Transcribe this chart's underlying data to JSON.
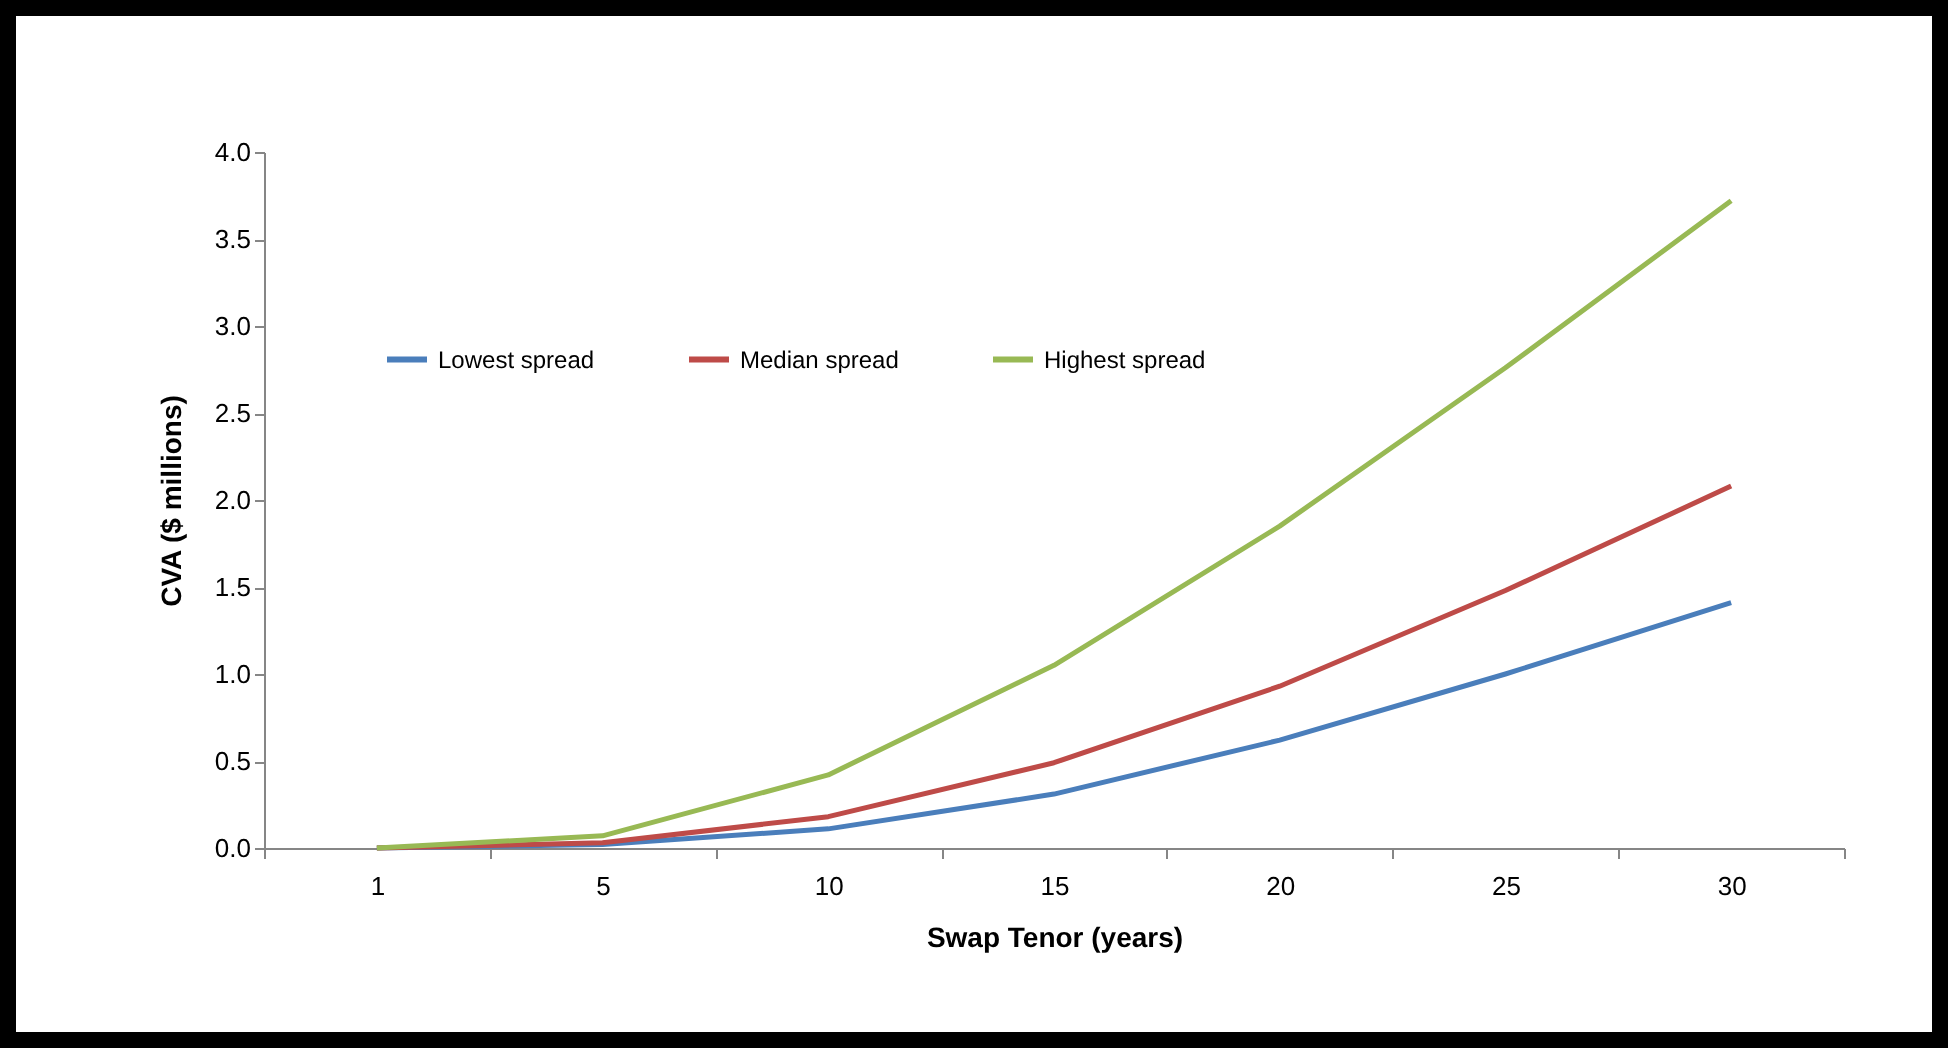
{
  "chart_data": {
    "type": "line",
    "xlabel": "Swap Tenor (years)",
    "ylabel": "CVA ($ millions)",
    "categories": [
      "1",
      "5",
      "10",
      "15",
      "20",
      "25",
      "30"
    ],
    "series": [
      {
        "name": "Lowest spread",
        "color": "#4a7ebb",
        "values": [
          0,
          0.02,
          0.11,
          0.31,
          0.62,
          1.0,
          1.41
        ]
      },
      {
        "name": "Median spread",
        "color": "#be4b48",
        "values": [
          0,
          0.03,
          0.18,
          0.49,
          0.93,
          1.48,
          2.08
        ]
      },
      {
        "name": "Highest spread",
        "color": "#98b954",
        "values": [
          0,
          0.07,
          0.42,
          1.05,
          1.85,
          2.76,
          3.72
        ]
      }
    ],
    "ylim": [
      0,
      4
    ],
    "yticks": [
      {
        "value": 0,
        "label": "0.0"
      },
      {
        "value": 0.5,
        "label": "0.5"
      },
      {
        "value": 1,
        "label": "1.0"
      },
      {
        "value": 1.5,
        "label": "1.5"
      },
      {
        "value": 2,
        "label": "2.0"
      },
      {
        "value": 2.5,
        "label": "2.5"
      },
      {
        "value": 3,
        "label": "3.0"
      },
      {
        "value": 3.5,
        "label": "3.5"
      },
      {
        "value": 4,
        "label": "4.0"
      }
    ],
    "grid": false,
    "legend": "top left",
    "marker": "none",
    "line_style": "solid"
  }
}
